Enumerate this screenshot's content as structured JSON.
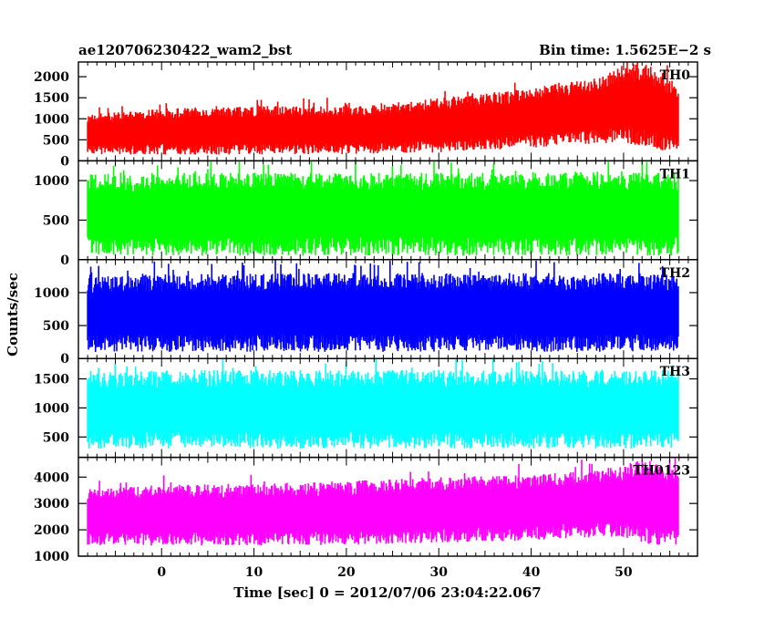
{
  "header": {
    "title_left": "ae120706230422_wam2_bst",
    "title_right": "Bin time: 1.5625E−2 s"
  },
  "axes": {
    "xlabel": "Time [sec] 0 = 2012/07/06 23:04:22.067",
    "ylabel": "Counts/sec"
  },
  "chart_data": {
    "type": "line",
    "title": "ae120706230422_wam2_bst",
    "bin_time": "Bin time: 1.5625E−2 s",
    "xlabel": "Time [sec] 0 = 2012/07/06 23:04:22.067",
    "ylabel": "Counts/sec",
    "xlim": [
      -9,
      58
    ],
    "xticks": [
      0,
      10,
      20,
      30,
      40,
      50
    ],
    "x_extent": [
      -8,
      56
    ],
    "panels": [
      {
        "name": "TH0",
        "color": "#ff0000",
        "ylim": [
          0,
          2350
        ],
        "yticks": [
          0,
          500,
          1000,
          1500,
          2000
        ],
        "envelope": {
          "x": [
            -8,
            0,
            10,
            20,
            25,
            30,
            35,
            40,
            45,
            48,
            50,
            52,
            54,
            56
          ],
          "low": [
            150,
            150,
            150,
            160,
            170,
            200,
            250,
            300,
            380,
            420,
            400,
            300,
            250,
            200
          ],
          "high": [
            1100,
            1250,
            1300,
            1300,
            1380,
            1500,
            1600,
            1750,
            1900,
            2050,
            2300,
            2350,
            2150,
            1700
          ]
        }
      },
      {
        "name": "TH1",
        "color": "#00ff00",
        "ylim": [
          0,
          1250
        ],
        "yticks": [
          0,
          500,
          1000
        ],
        "envelope": {
          "x": [
            -8,
            0,
            10,
            20,
            30,
            40,
            50,
            56
          ],
          "low": [
            50,
            50,
            50,
            50,
            50,
            50,
            50,
            50
          ],
          "high": [
            1080,
            1100,
            1100,
            1100,
            1100,
            1110,
            1120,
            1100
          ]
        }
      },
      {
        "name": "TH2",
        "color": "#0000ff",
        "ylim": [
          0,
          1500
        ],
        "yticks": [
          0,
          500,
          1000
        ],
        "envelope": {
          "x": [
            -8,
            0,
            10,
            20,
            30,
            40,
            50,
            56
          ],
          "low": [
            100,
            100,
            100,
            100,
            100,
            100,
            100,
            100
          ],
          "high": [
            1250,
            1280,
            1300,
            1300,
            1300,
            1300,
            1300,
            1280
          ]
        }
      },
      {
        "name": "TH3",
        "color": "#00ffff",
        "ylim": [
          150,
          1850
        ],
        "yticks": [
          500,
          1000,
          1500
        ],
        "envelope": {
          "x": [
            -8,
            0,
            10,
            20,
            30,
            40,
            50,
            56
          ],
          "low": [
            300,
            300,
            300,
            300,
            300,
            300,
            300,
            300
          ],
          "high": [
            1600,
            1650,
            1650,
            1650,
            1650,
            1650,
            1650,
            1650
          ]
        }
      },
      {
        "name": "TH0123",
        "color": "#ff00ff",
        "ylim": [
          1000,
          4750
        ],
        "yticks": [
          1000,
          2000,
          3000,
          4000
        ],
        "envelope": {
          "x": [
            -8,
            0,
            10,
            20,
            30,
            40,
            45,
            50,
            52,
            54,
            56
          ],
          "low": [
            1400,
            1400,
            1400,
            1420,
            1500,
            1600,
            1700,
            1700,
            1500,
            1400,
            1400
          ],
          "high": [
            3600,
            3700,
            3750,
            3850,
            4000,
            4100,
            4200,
            4450,
            4700,
            4500,
            4200
          ]
        }
      }
    ]
  }
}
